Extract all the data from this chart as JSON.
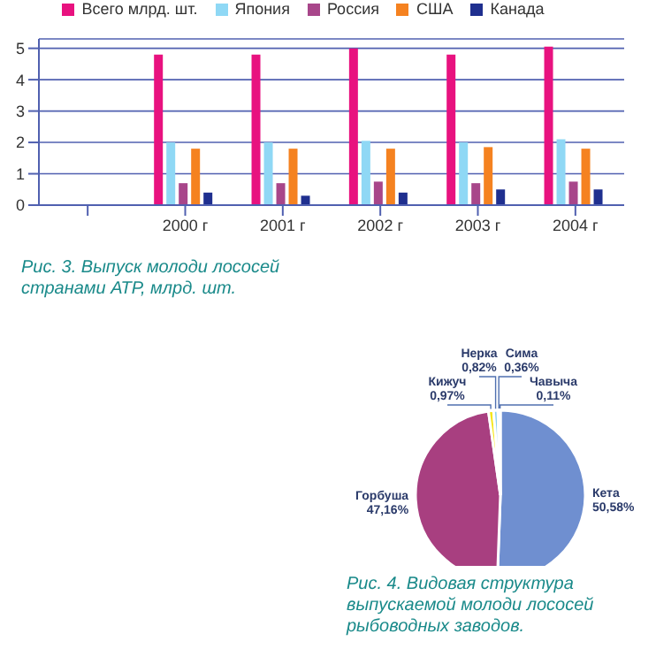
{
  "chart_data": [
    {
      "type": "bar",
      "title": "Рис. 3. Выпуск молоди лососей странами АТР, млрд. шт.",
      "categories": [
        null,
        "2000 г",
        "2001 г",
        "2002 г",
        "2003 г",
        "2004 г"
      ],
      "series": [
        {
          "name": "Всего млрд. шт.",
          "color": "#e8127f",
          "values": [
            null,
            4.8,
            4.8,
            5.0,
            4.8,
            5.05
          ]
        },
        {
          "name": "Япония",
          "color": "#8fd8f5",
          "values": [
            null,
            2.0,
            2.0,
            2.05,
            2.0,
            2.1
          ]
        },
        {
          "name": "Россия",
          "color": "#a8468a",
          "values": [
            null,
            0.7,
            0.7,
            0.75,
            0.7,
            0.75
          ]
        },
        {
          "name": "США",
          "color": "#f58220",
          "values": [
            null,
            1.8,
            1.8,
            1.8,
            1.85,
            1.8
          ]
        },
        {
          "name": "Канада",
          "color": "#1f2f8f",
          "values": [
            null,
            0.4,
            0.3,
            0.4,
            0.5,
            0.5
          ]
        }
      ],
      "ylim": [
        0,
        5.3
      ],
      "yticks": [
        0,
        1,
        2,
        3,
        4,
        5
      ],
      "grid": "y",
      "legend": "top"
    },
    {
      "type": "pie",
      "title": "Рис. 4. Видовая структура выпускаемой молоди лососей рыбоводных заводов.",
      "categories": [
        "Кета",
        "Горбуша",
        "Кижуч",
        "Нерка",
        "Сима",
        "Чавыча"
      ],
      "values": [
        50.58,
        47.16,
        0.97,
        0.82,
        0.36,
        0.11
      ],
      "value_labels": [
        "50,58%",
        "47,16%",
        "0,97%",
        "0,82%",
        "0,36%",
        "0,11%"
      ],
      "colors": [
        "#6f8fd0",
        "#a83f80",
        "#f5e61a",
        "#8fd0f0",
        "#f07020",
        "#203090"
      ]
    }
  ]
}
